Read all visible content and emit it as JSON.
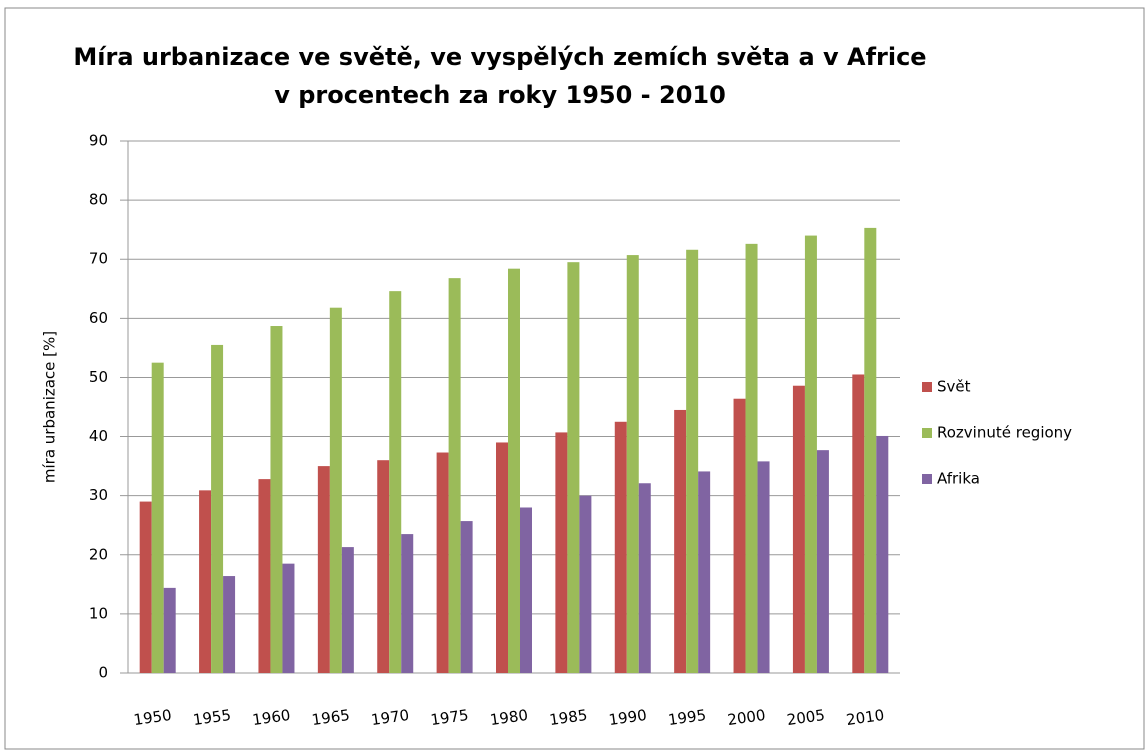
{
  "chart_data": {
    "type": "bar",
    "title": "Míra urbanizace ve světě, ve vyspělých zemích světa a v Africe",
    "subtitle": "v procentech za roky 1950 - 2010",
    "y_label": "míra urbanizace [%]",
    "categories": [
      "1950",
      "1955",
      "1960",
      "1965",
      "1970",
      "1975",
      "1980",
      "1985",
      "1990",
      "1995",
      "2000",
      "2005",
      "2010"
    ],
    "series": [
      {
        "name": "Svět",
        "color": "#c0504d",
        "values": [
          29,
          30.9,
          32.8,
          35,
          36,
          37.3,
          39,
          40.7,
          42.5,
          44.5,
          46.4,
          48.6,
          50.5
        ]
      },
      {
        "name": "Rozvinuté regiony",
        "color": "#9bbb59",
        "values": [
          52.5,
          55.5,
          58.7,
          61.8,
          64.6,
          66.8,
          68.4,
          69.5,
          70.7,
          71.6,
          72.6,
          74,
          75.3
        ]
      },
      {
        "name": "Afrika",
        "color": "#8064a2",
        "values": [
          14.4,
          16.4,
          18.5,
          21.3,
          23.5,
          25.7,
          28,
          30,
          32.1,
          34.1,
          35.8,
          37.7,
          40.1
        ]
      }
    ],
    "ylim": [
      0,
      90
    ],
    "yticks": [
      0,
      10,
      20,
      30,
      40,
      50,
      60,
      70,
      80,
      90
    ],
    "grid": true,
    "legend": "right"
  }
}
